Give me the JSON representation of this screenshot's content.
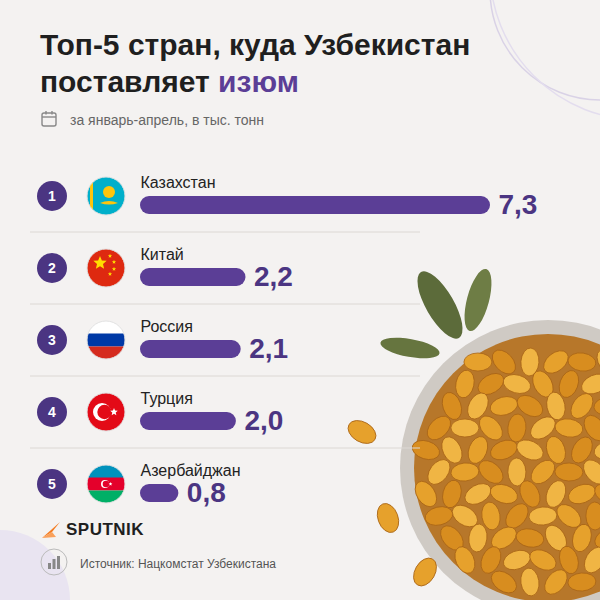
{
  "chart_data": {
    "type": "bar",
    "orientation": "horizontal",
    "title": "Топ-5 стран, куда Узбекистан поставляет изюм",
    "subtitle": "за январь-апрель, в тыс. тонн",
    "categories": [
      "Казахстан",
      "Китай",
      "Россия",
      "Турция",
      "Азербайджан"
    ],
    "ranks": [
      1,
      2,
      3,
      4,
      5
    ],
    "values": [
      7.3,
      2.2,
      2.1,
      2.0,
      0.8
    ],
    "value_labels": [
      "7,3",
      "2,2",
      "2,1",
      "2,0",
      "0,8"
    ],
    "color": "#5b3e96",
    "xlim": [
      0,
      7.3
    ],
    "data_labels": true,
    "tick_labels": false,
    "grid": false,
    "logo": "SPUTNIK",
    "source": "Источник: Нацкомстат Узбекистана"
  }
}
